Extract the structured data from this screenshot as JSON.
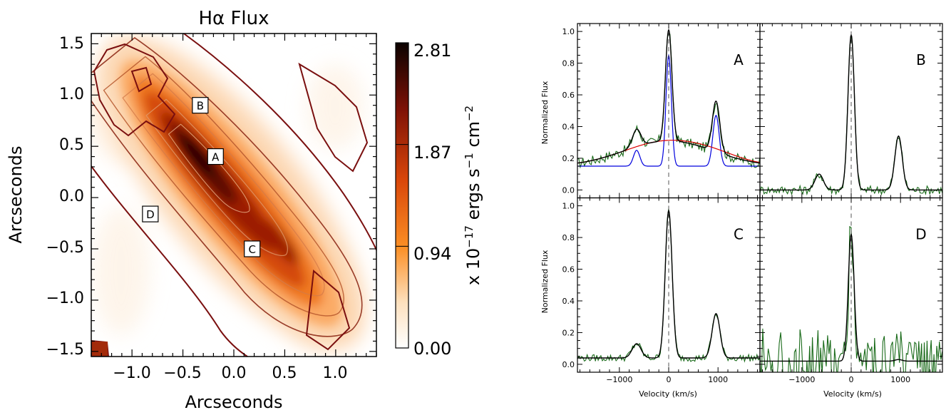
{
  "map": {
    "title": "Hα Flux",
    "xlabel": "Arcseconds",
    "ylabel": "Arcseconds",
    "xticks": [
      "−1.0",
      "−0.5",
      "0.0",
      "0.5",
      "1.0"
    ],
    "yticks": [
      "1.5",
      "1.0",
      "0.5",
      "0.0",
      "−0.5",
      "−1.0",
      "−1.5"
    ],
    "colorbar": {
      "ticks": [
        "2.81",
        "1.87",
        "0.94",
        "0.00"
      ],
      "label": "x 10$-17$ ergs s$-1$ cm$-2$",
      "label_parts": {
        "pre": "x 10",
        "e1": "−17",
        "mid": " ergs s",
        "e2": "−1",
        "mid2": " cm",
        "e3": "−2"
      }
    },
    "markers": [
      {
        "label": "B",
        "x": -0.33,
        "y": 0.9
      },
      {
        "label": "A",
        "x": -0.18,
        "y": 0.4
      },
      {
        "label": "C",
        "x": 0.18,
        "y": -0.5
      },
      {
        "label": "D",
        "x": -0.82,
        "y": -0.16
      }
    ]
  },
  "chart_data": [
    {
      "type": "heatmap",
      "title": "Hα Flux",
      "xlabel": "Arcseconds",
      "ylabel": "Arcseconds",
      "xlim": [
        -1.4,
        1.4
      ],
      "ylim": [
        -1.55,
        1.6
      ],
      "colorbar": {
        "min": 0.0,
        "max": 2.81,
        "ticks": [
          2.81,
          1.87,
          0.94,
          0.0
        ],
        "colormap": "white-orange-darkred-black"
      },
      "peak": {
        "x": -0.18,
        "y": 0.3
      },
      "markers": [
        "A",
        "B",
        "C",
        "D"
      ]
    },
    {
      "type": "line",
      "panels": [
        "A",
        "B",
        "C",
        "D"
      ],
      "xlabel": "Velocity (km/s)",
      "ylabel": "Normalized Flux",
      "xlim": [
        -1850,
        1850
      ],
      "ylim": [
        -0.05,
        1.05
      ],
      "xticks": [
        -1000,
        0,
        1000
      ],
      "yticks": [
        0.0,
        0.2,
        0.4,
        0.6,
        0.8,
        1.0
      ],
      "components": [
        {
          "panel": "A",
          "series": "narrow",
          "color": "#0000dd",
          "center": 0,
          "amp": 0.7,
          "sigma": 55
        },
        {
          "panel": "A",
          "series": "broad",
          "color": "#dd0000",
          "center": 0,
          "amp": 0.16,
          "sigma": 900
        },
        {
          "panel": "A",
          "series": "total_peak",
          "color": "#000000",
          "x": 0,
          "y": 1.0
        },
        {
          "panel": "A",
          "series": "total_peak_NII",
          "color": "#000000",
          "x": 960,
          "y": 0.66
        },
        {
          "panel": "B",
          "series": "total_peak",
          "color": "#000000",
          "x": 0,
          "y": 0.98
        },
        {
          "panel": "C",
          "series": "total_peak",
          "color": "#000000",
          "x": 0,
          "y": 0.97
        },
        {
          "panel": "D",
          "series": "total_peak",
          "color": "#000000",
          "x": 0,
          "y": 0.82
        }
      ]
    }
  ],
  "spectra": {
    "ylabel": "Normalized Flux",
    "xlabel": "Velocity (km/s)",
    "xticks": [
      "−1000",
      "0",
      "1000"
    ],
    "yticks": [
      "0.0",
      "0.2",
      "0.4",
      "0.6",
      "0.8",
      "1.0"
    ],
    "panels": [
      {
        "label": "A",
        "baseline": 0.15,
        "narrow": 0.7,
        "nii_r": 0.32,
        "nii_b": 0.11,
        "broad": 0.16,
        "noise": 0.03,
        "width": 65
      },
      {
        "label": "B",
        "baseline": 0.0,
        "narrow": 0.98,
        "nii_r": 0.34,
        "nii_b": 0.1,
        "broad": 0.0,
        "noise": 0.025,
        "width": 65
      },
      {
        "label": "C",
        "baseline": 0.04,
        "narrow": 0.93,
        "nii_r": 0.28,
        "nii_b": 0.09,
        "broad": 0.0,
        "noise": 0.02,
        "width": 70
      },
      {
        "label": "D",
        "baseline": 0.02,
        "narrow": 0.8,
        "nii_r": 0.01,
        "nii_b": 0.0,
        "broad": 0.0,
        "noise": 0.13,
        "width": 60
      }
    ],
    "colors": {
      "data": "#1a6b1a",
      "fit": "#000000",
      "narrow": "#0000dd",
      "broad": "#dd0000"
    }
  }
}
